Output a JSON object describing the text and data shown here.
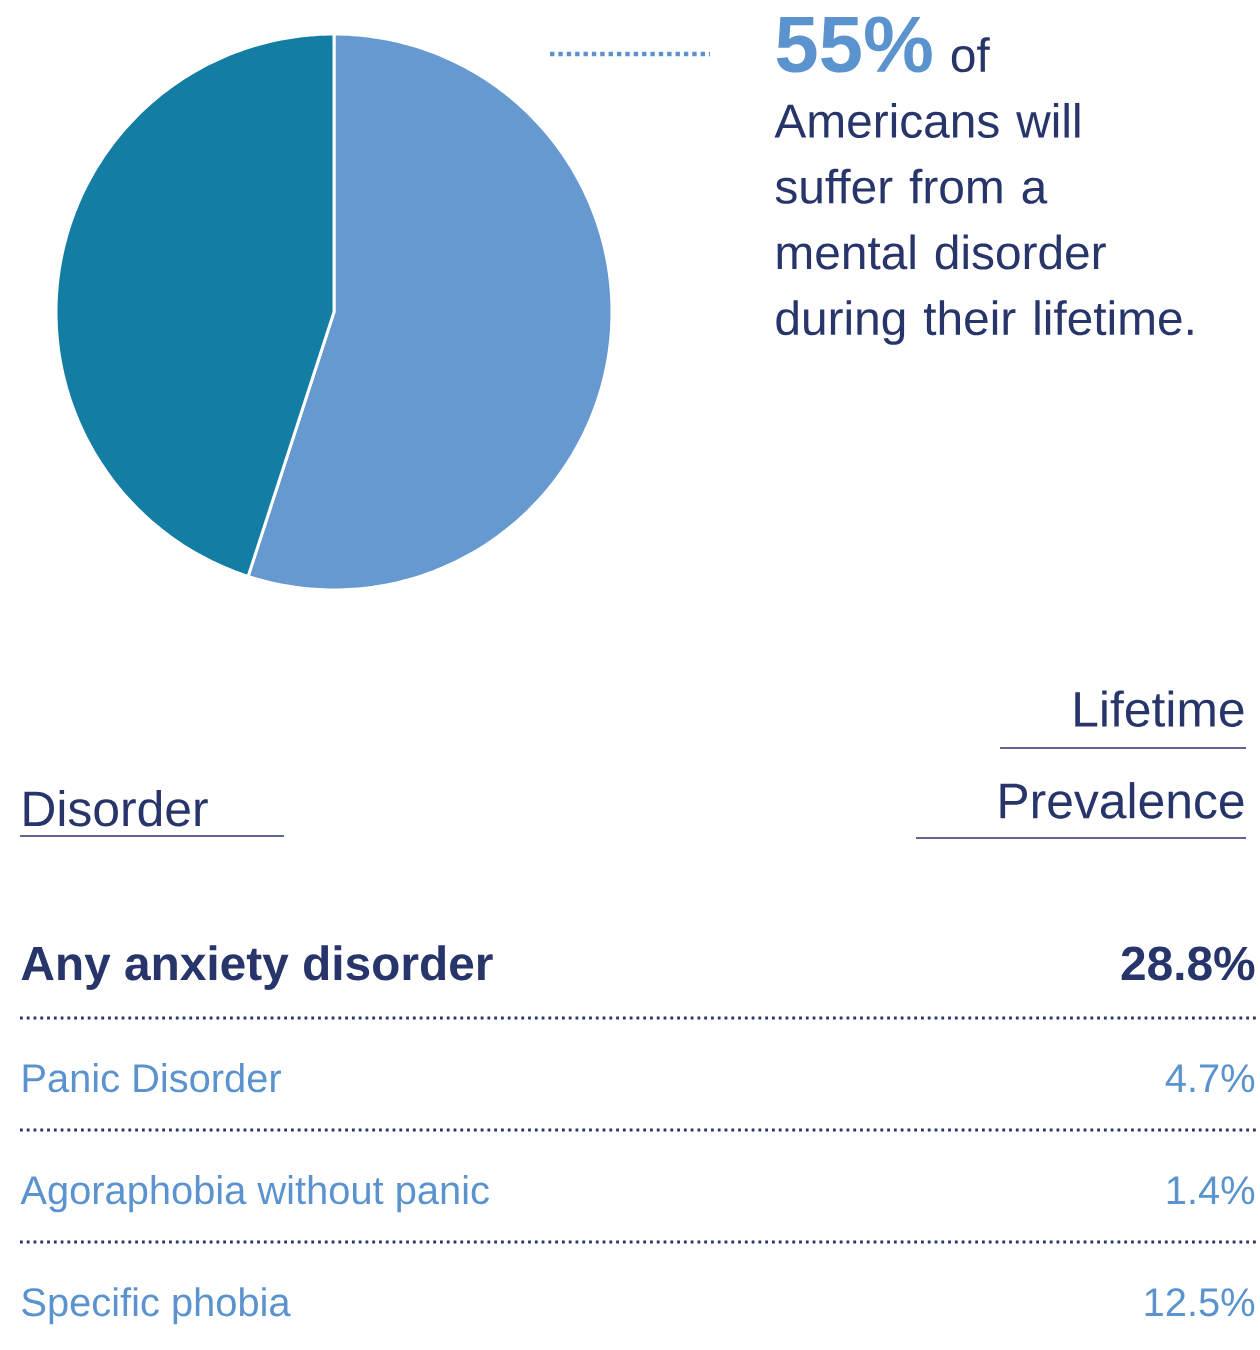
{
  "chart_data": [
    {
      "type": "pie",
      "categories": [
        null,
        null
      ],
      "values": [
        55,
        45
      ],
      "colors": [
        "#6699cf",
        "#137da3"
      ],
      "annotations": [
        "55%",
        "of Americans will suffer from a mental disorder during their lifetime."
      ]
    },
    {
      "type": "other",
      "xlabel": "Disorder",
      "ylabel": "Lifetime Prevalence",
      "categories": [
        "Any anxiety disorder",
        "Panic Disorder",
        "Agoraphobia without panic",
        "Specific phobia"
      ],
      "value_labels": [
        "28.8%",
        "4.7%",
        "1.4%",
        "12.5%"
      ]
    }
  ]
}
